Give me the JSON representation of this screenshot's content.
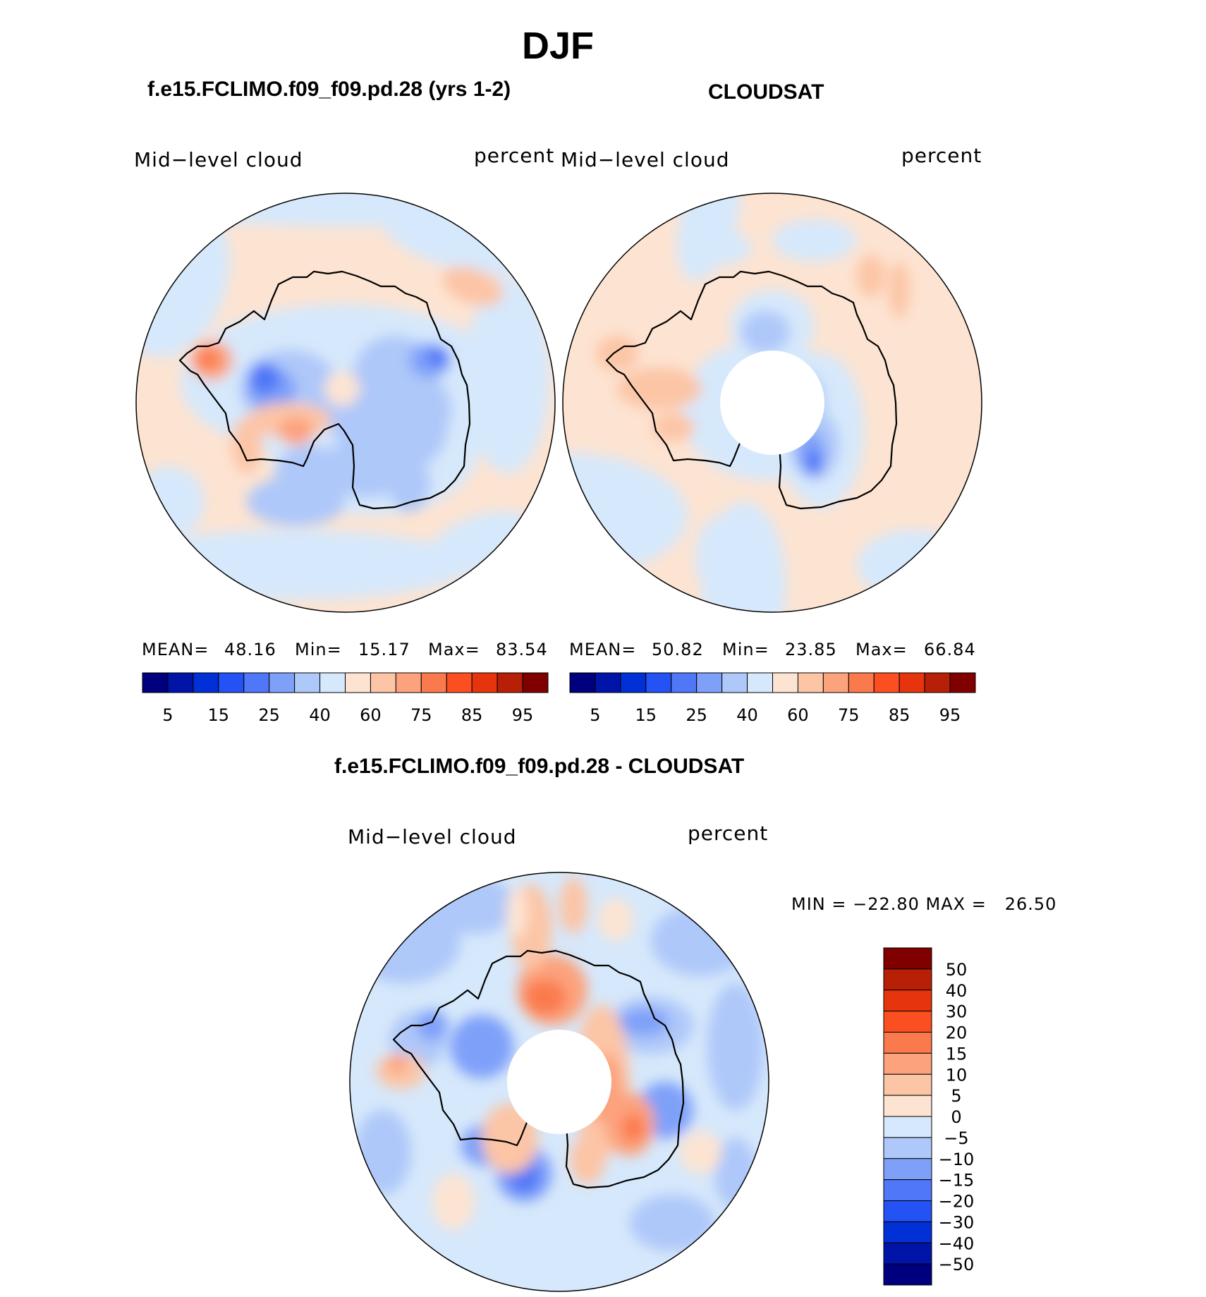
{
  "title": "DJF",
  "colors": {
    "seq": [
      "#00007f",
      "#0014a8",
      "#0030d6",
      "#2452f4",
      "#4f77f7",
      "#7fa0f9",
      "#aec8f9",
      "#d6e8fb",
      "#fde4d2",
      "#fcc5a6",
      "#fca27d",
      "#fb7a4d",
      "#fb4f22",
      "#e6340c",
      "#b71f06",
      "#800000"
    ],
    "diff": [
      "#00007f",
      "#0014a8",
      "#0030d6",
      "#2452f4",
      "#4f77f7",
      "#7fa0f9",
      "#aec8f9",
      "#d6e8fb",
      "#fde4d2",
      "#fcc5a6",
      "#fca27d",
      "#fb7a4d",
      "#fb4f22",
      "#e6340c",
      "#b71f06",
      "#800000"
    ],
    "land_outline": "#000000"
  },
  "panels": {
    "model": {
      "title": "f.e15.FCLIMO.f09_f09.pd.28 (yrs 1-2)",
      "variable": "Mid−level cloud",
      "units": "percent",
      "mean_label": "MEAN=",
      "mean": "48.16",
      "min_label": "Min=",
      "min": "15.17",
      "max_label": "Max=",
      "max": "83.54"
    },
    "obs": {
      "title": "CLOUDSAT",
      "variable": "Mid−level cloud",
      "units": "percent",
      "mean_label": "MEAN=",
      "mean": "50.82",
      "min_label": "Min=",
      "min": "23.85",
      "max_label": "Max=",
      "max": "66.84"
    },
    "diff": {
      "title": "f.e15.FCLIMO.f09_f09.pd.28 - CLOUDSAT",
      "variable": "Mid−level cloud",
      "units": "percent",
      "minmax": "MIN = −22.80 MAX =   26.50"
    }
  },
  "colorbar_seq": {
    "tick_labels": [
      "5",
      "15",
      "25",
      "40",
      "60",
      "75",
      "85",
      "95"
    ]
  },
  "colorbar_diff": {
    "tick_labels": [
      "50",
      "40",
      "30",
      "20",
      "15",
      "10",
      "5",
      "0",
      "−5",
      "−10",
      "−15",
      "−20",
      "−30",
      "−40",
      "−50"
    ]
  }
}
